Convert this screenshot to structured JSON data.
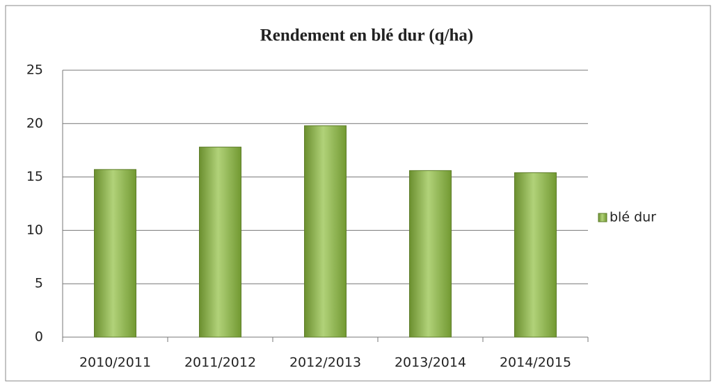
{
  "chart_data": {
    "type": "bar",
    "title": "Rendement en blé dur (q/ha)",
    "categories": [
      "2010/2011",
      "2011/2012",
      "2012/2013",
      "2013/2014",
      "2014/2015"
    ],
    "series": [
      {
        "name": "blé dur",
        "color": "#8fbf3f",
        "values": [
          15.7,
          17.8,
          19.8,
          15.6,
          15.4
        ]
      }
    ],
    "ylim": [
      0,
      25
    ],
    "yticks": [
      0,
      5,
      10,
      15,
      20,
      25
    ],
    "grid": true,
    "legend": "right"
  }
}
